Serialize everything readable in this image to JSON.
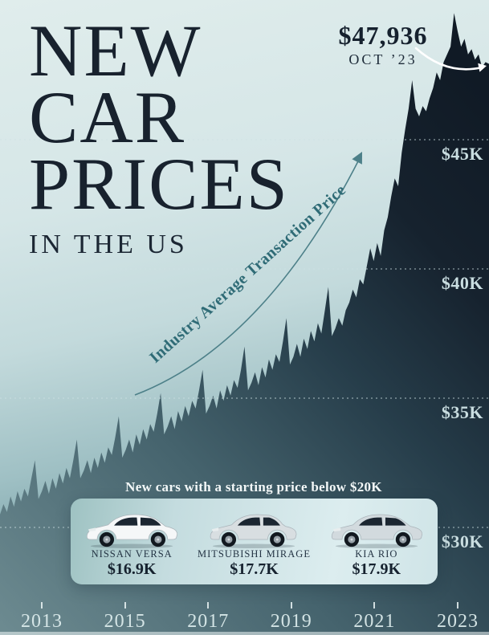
{
  "page": {
    "title_lines": [
      "NEW",
      "CAR",
      "PRICES"
    ],
    "subtitle": "IN THE US"
  },
  "chart_data": {
    "type": "area",
    "title": "New Car Prices in the US",
    "series_label": "Industry Average Transaction Price",
    "unit": "USD thousands",
    "x_start": "2012-02",
    "x_end": "2023-10",
    "monthly_values_k": [
      30.5,
      30.9,
      30.6,
      31.2,
      30.8,
      31.4,
      31.0,
      31.5,
      31.2,
      31.9,
      32.6,
      31.1,
      31.4,
      31.8,
      31.3,
      31.9,
      31.5,
      32.1,
      31.7,
      32.3,
      31.9,
      32.6,
      33.4,
      31.9,
      32.2,
      32.6,
      32.1,
      32.7,
      32.3,
      32.9,
      32.5,
      33.1,
      32.8,
      33.5,
      34.3,
      32.7,
      33.0,
      33.4,
      32.9,
      33.6,
      33.2,
      33.8,
      33.4,
      34.0,
      33.7,
      34.4,
      35.2,
      33.6,
      33.9,
      34.3,
      33.8,
      34.5,
      34.1,
      34.7,
      34.3,
      34.9,
      34.6,
      35.3,
      36.1,
      34.4,
      34.7,
      35.1,
      34.6,
      35.3,
      34.9,
      35.5,
      35.1,
      35.7,
      35.4,
      36.1,
      37.0,
      35.3,
      35.6,
      36.0,
      35.5,
      36.2,
      35.8,
      36.5,
      36.1,
      36.7,
      36.4,
      37.2,
      38.1,
      36.3,
      36.6,
      37.1,
      36.6,
      37.3,
      36.9,
      37.6,
      37.2,
      37.9,
      37.5,
      38.4,
      39.3,
      37.4,
      37.7,
      38.1,
      37.8,
      38.4,
      38.7,
      39.2,
      38.9,
      39.6,
      39.4,
      40.1,
      40.8,
      40.3,
      41.0,
      40.5,
      41.5,
      42.0,
      42.8,
      43.5,
      43.2,
      44.5,
      45.4,
      46.2,
      47.3,
      46.2,
      45.9,
      46.3,
      46.1,
      46.6,
      47.0,
      47.6,
      47.3,
      48.0,
      48.3,
      48.6,
      49.9,
      49.2,
      48.6,
      48.9,
      48.3,
      48.5,
      48.1,
      48.3,
      47.8,
      48.0,
      47.936
    ],
    "y_ticks": [
      {
        "label": "$45K",
        "value": 45
      },
      {
        "label": "$40K",
        "value": 40
      },
      {
        "label": "$35K",
        "value": 35
      },
      {
        "label": "$30K",
        "value": 30
      }
    ],
    "x_ticks": [
      "2013",
      "2015",
      "2017",
      "2019",
      "2021",
      "2023"
    ],
    "grid": "dashed horizontal",
    "legend_position": "none",
    "peak_annotation": {
      "price": "$47,936",
      "date": "OCT ’23"
    }
  },
  "cars_panel": {
    "heading": "New cars with a starting price below $20K",
    "cars": [
      {
        "name": "NISSAN VERSA",
        "price": "$16.9K",
        "body": "sedan",
        "paint": "#f5f7f8"
      },
      {
        "name": "MITSUBISHI MIRAGE",
        "price": "$17.7K",
        "body": "hatchback",
        "paint": "#d8dee1"
      },
      {
        "name": "KIA RIO",
        "price": "$17.9K",
        "body": "sedan",
        "paint": "#d2dade"
      }
    ]
  },
  "colors": {
    "title_navy": "#18222e",
    "area_dark": "#131d28",
    "area_light": "#6d8b91",
    "annotation_teal": "#2f6b76",
    "axis_label_light": "#c9dde0"
  }
}
